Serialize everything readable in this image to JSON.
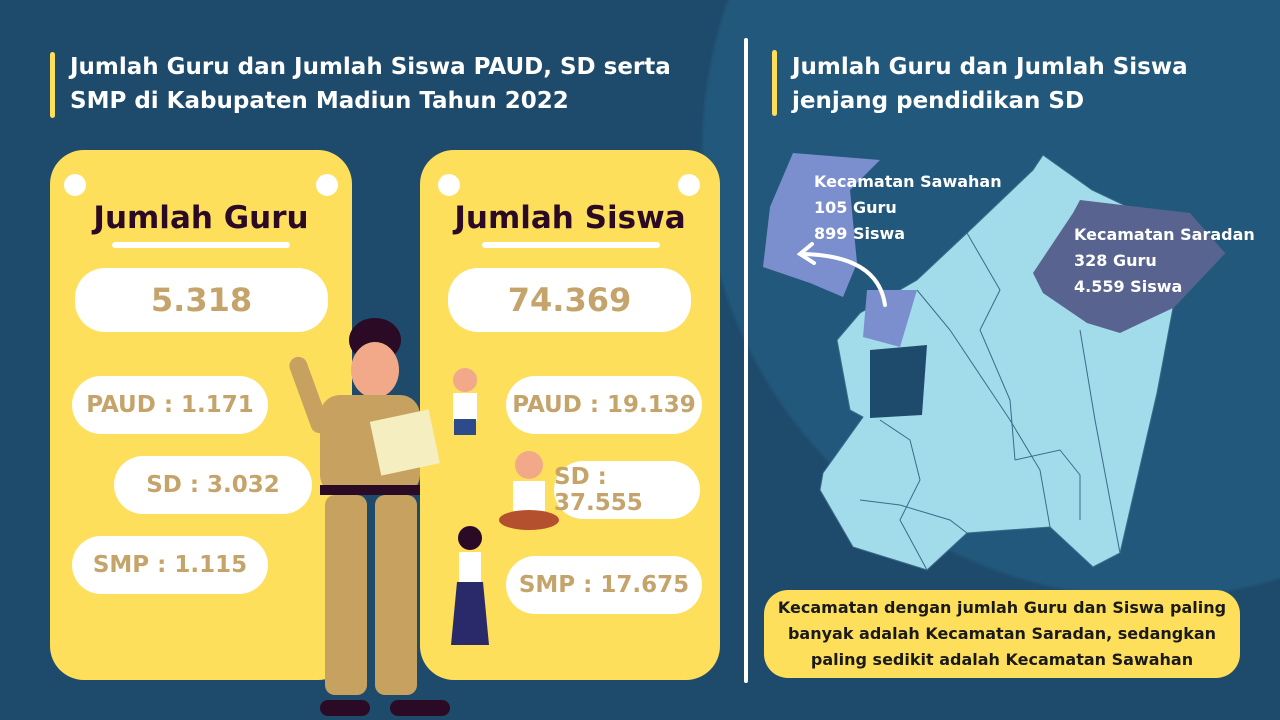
{
  "left_title": "Jumlah Guru dan Jumlah Siswa PAUD, SD serta SMP di Kabupaten Madiun Tahun 2022",
  "right_title": "Jumlah Guru dan Jumlah Siswa jenjang pendidikan SD",
  "guru": {
    "heading": "Jumlah Guru",
    "total": "5.318",
    "paud": "PAUD : 1.171",
    "sd": "SD : 3.032",
    "smp": "SMP : 1.115"
  },
  "siswa": {
    "heading": "Jumlah Siswa",
    "total": "74.369",
    "paud": "PAUD : 19.139",
    "sd": "SD : 37.555",
    "smp": "SMP : 17.675"
  },
  "map": {
    "sawahan": {
      "name": "Kecamatan Sawahan",
      "guru": "105 Guru",
      "siswa": "899 Siswa"
    },
    "saradan": {
      "name": "Kecamatan Saradan",
      "guru": "328 Guru",
      "siswa": "4.559 Siswa"
    }
  },
  "conclusion": "Kecamatan dengan jumlah Guru dan Siswa paling banyak adalah Kecamatan Saradan, sedangkan paling sedikit adalah Kecamatan Sawahan",
  "colors": {
    "background": "#1e4a6b",
    "card": "#fedf5b",
    "value_text": "#c4a46a",
    "map_region": "#a2dbea",
    "sawahan": "#7b8fce",
    "saradan": "#58648f"
  }
}
